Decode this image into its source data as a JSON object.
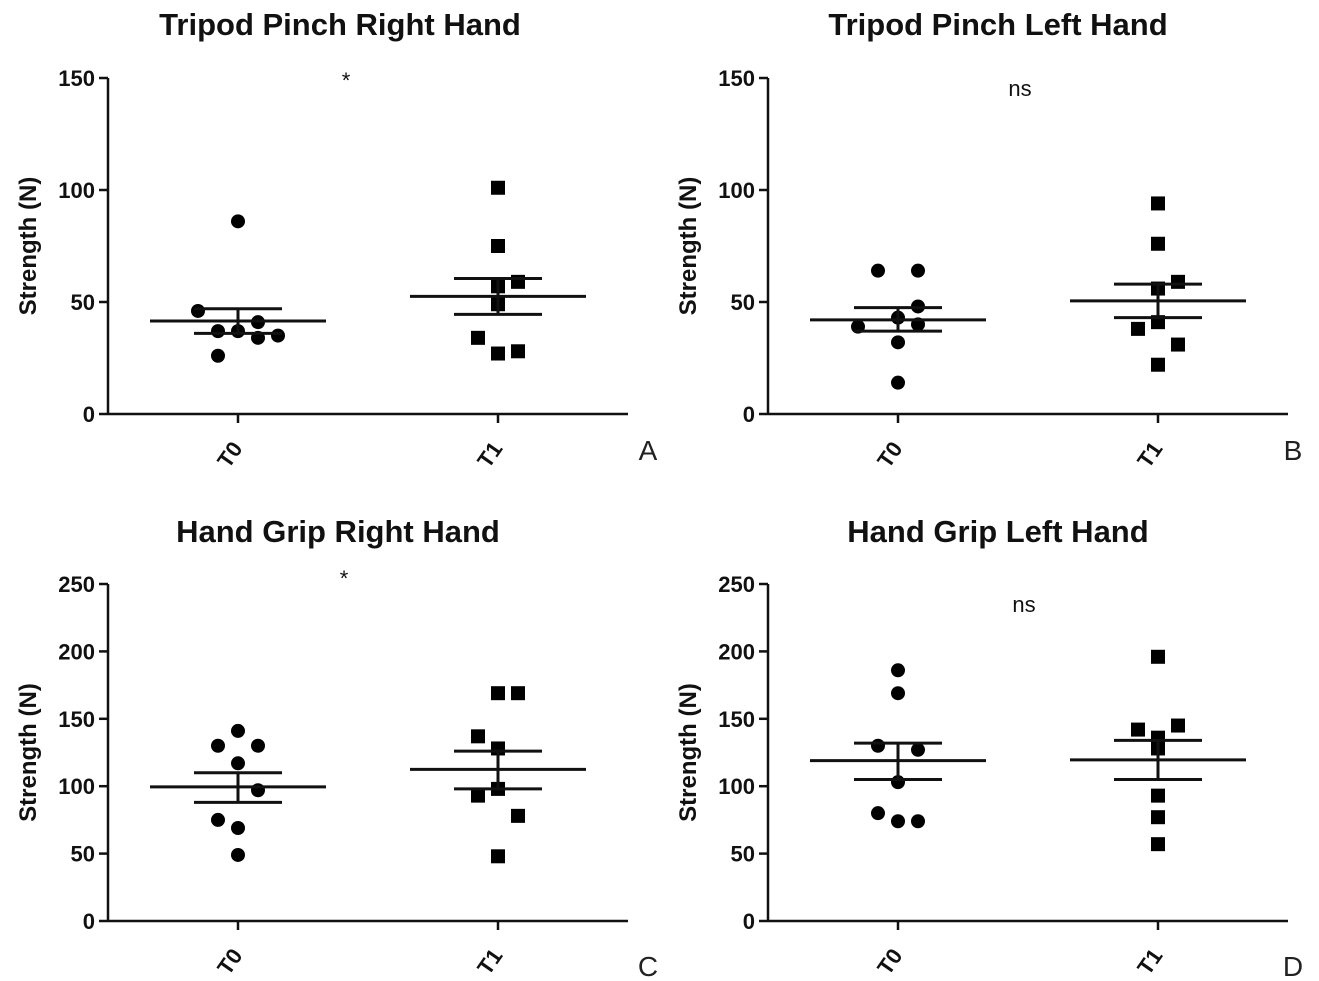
{
  "chart_data": [
    {
      "type": "scatter",
      "title": "Tripod Pinch Right Hand",
      "ylabel": "Strength (N)",
      "categories": [
        "T0",
        "T1"
      ],
      "ylim": [
        0,
        150
      ],
      "yticks": [
        0,
        50,
        100,
        150
      ],
      "significance": "*",
      "panel_label": "A",
      "series": [
        {
          "category": "T0",
          "marker": "circle",
          "values": [
            86,
            46,
            41,
            37,
            37,
            35,
            34,
            26
          ],
          "mean": 41.5,
          "sem_low": 36,
          "sem_high": 47
        },
        {
          "category": "T1",
          "marker": "square",
          "values": [
            101,
            75,
            59,
            57,
            49,
            34,
            28,
            27
          ],
          "mean": 52.5,
          "sem_low": 44.5,
          "sem_high": 60.5
        }
      ]
    },
    {
      "type": "scatter",
      "title": "Tripod Pinch Left Hand",
      "ylabel": "Strength (N)",
      "categories": [
        "T0",
        "T1"
      ],
      "ylim": [
        0,
        150
      ],
      "yticks": [
        0,
        50,
        100,
        150
      ],
      "significance": "ns",
      "panel_label": "B",
      "series": [
        {
          "category": "T0",
          "marker": "circle",
          "values": [
            64,
            64,
            48,
            43,
            40,
            39,
            32,
            14
          ],
          "mean": 42,
          "sem_low": 37,
          "sem_high": 47.5
        },
        {
          "category": "T1",
          "marker": "square",
          "values": [
            94,
            76,
            59,
            56,
            41,
            38,
            31,
            22
          ],
          "mean": 50.5,
          "sem_low": 43,
          "sem_high": 58
        }
      ]
    },
    {
      "type": "scatter",
      "title": "Hand Grip Right Hand",
      "ylabel": "Strength (N)",
      "categories": [
        "T0",
        "T1"
      ],
      "ylim": [
        0,
        250
      ],
      "yticks": [
        0,
        50,
        100,
        150,
        200,
        250
      ],
      "significance": "*",
      "panel_label": "C",
      "series": [
        {
          "category": "T0",
          "marker": "circle",
          "values": [
            141,
            130,
            130,
            117,
            97,
            75,
            69,
            49
          ],
          "mean": 99.5,
          "sem_low": 88,
          "sem_high": 110
        },
        {
          "category": "T1",
          "marker": "square",
          "values": [
            169,
            169,
            137,
            128,
            98,
            93,
            78,
            48
          ],
          "mean": 112.5,
          "sem_low": 98,
          "sem_high": 126
        }
      ]
    },
    {
      "type": "scatter",
      "title": "Hand Grip Left Hand",
      "ylabel": "Strength (N)",
      "categories": [
        "T0",
        "T1"
      ],
      "ylim": [
        0,
        250
      ],
      "yticks": [
        0,
        50,
        100,
        150,
        200,
        250
      ],
      "significance": "ns",
      "panel_label": "D",
      "series": [
        {
          "category": "T0",
          "marker": "circle",
          "values": [
            186,
            169,
            130,
            127,
            103,
            80,
            74,
            74
          ],
          "mean": 119,
          "sem_low": 105,
          "sem_high": 132
        },
        {
          "category": "T1",
          "marker": "square",
          "values": [
            196,
            145,
            142,
            136,
            128,
            93,
            77,
            57
          ],
          "mean": 119.5,
          "sem_low": 105,
          "sem_high": 134
        }
      ]
    }
  ]
}
